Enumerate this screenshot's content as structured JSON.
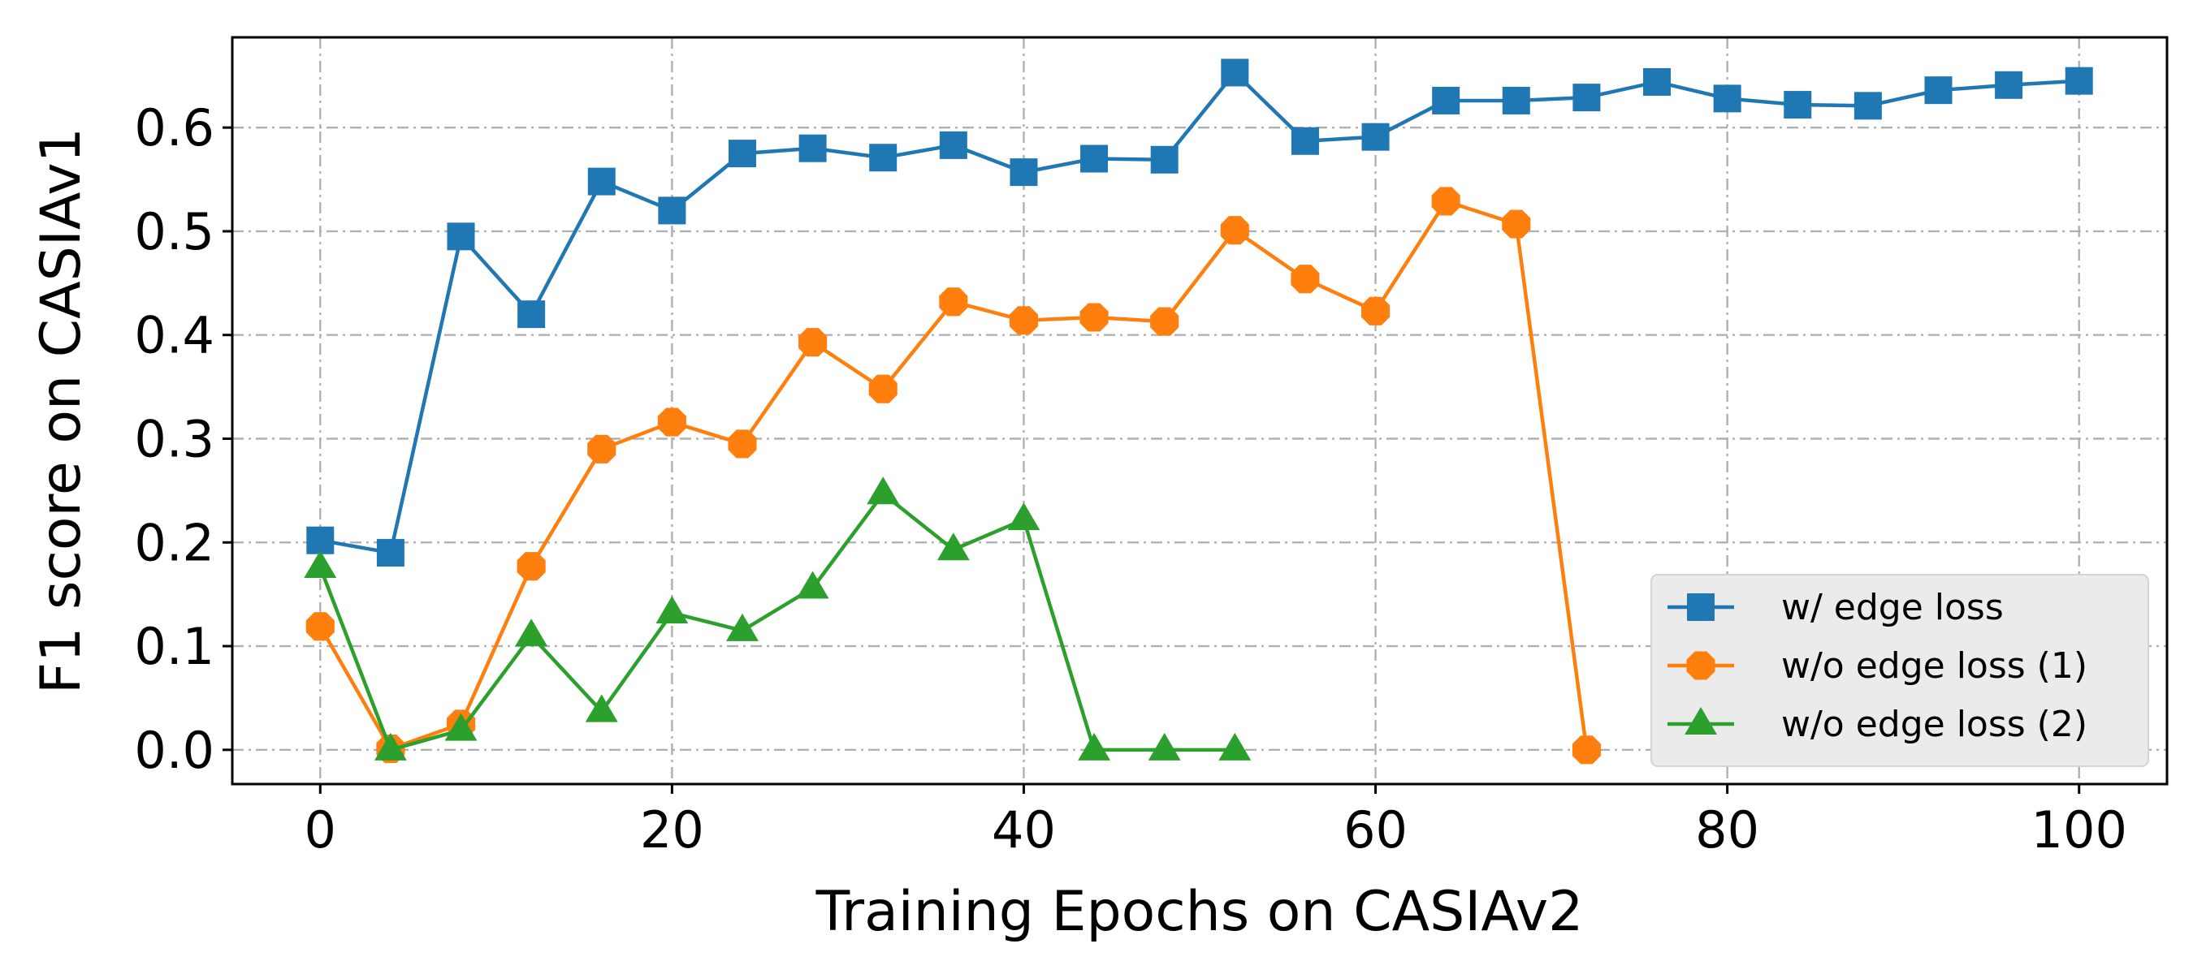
{
  "chart_data": {
    "type": "line",
    "xlabel": "Training Epochs on CASIAv2",
    "ylabel": "F1 score on CASIAv1",
    "xlim": [
      -5,
      105
    ],
    "ylim": [
      -0.033,
      0.687
    ],
    "xticks": [
      0,
      20,
      40,
      60,
      80,
      100
    ],
    "yticks": [
      0.0,
      0.1,
      0.2,
      0.3,
      0.4,
      0.5,
      0.6
    ],
    "xtick_labels": [
      "0",
      "20",
      "40",
      "60",
      "80",
      "100"
    ],
    "ytick_labels": [
      "0.0",
      "0.1",
      "0.2",
      "0.3",
      "0.4",
      "0.5",
      "0.6"
    ],
    "grid": true,
    "legend_position": "bottom-right",
    "series": [
      {
        "name": "w/ edge loss",
        "color": "#1f77b4",
        "marker": "square",
        "x": [
          0,
          4,
          8,
          12,
          16,
          20,
          24,
          28,
          32,
          36,
          40,
          44,
          48,
          52,
          56,
          60,
          64,
          68,
          72,
          76,
          80,
          84,
          88,
          92,
          96,
          100
        ],
        "y": [
          0.202,
          0.19,
          0.495,
          0.42,
          0.548,
          0.52,
          0.575,
          0.58,
          0.571,
          0.583,
          0.557,
          0.57,
          0.569,
          0.653,
          0.587,
          0.591,
          0.626,
          0.626,
          0.629,
          0.644,
          0.628,
          0.622,
          0.621,
          0.636,
          0.641,
          0.645
        ]
      },
      {
        "name": "w/o edge loss (1)",
        "color": "#ff7f0e",
        "marker": "octagon",
        "x": [
          0,
          4,
          8,
          12,
          16,
          20,
          24,
          28,
          32,
          36,
          40,
          44,
          48,
          52,
          56,
          60,
          64,
          68,
          72
        ],
        "y": [
          0.119,
          0.001,
          0.025,
          0.177,
          0.29,
          0.316,
          0.295,
          0.393,
          0.348,
          0.432,
          0.414,
          0.417,
          0.413,
          0.501,
          0.454,
          0.423,
          0.529,
          0.507,
          0.0
        ]
      },
      {
        "name": "w/o edge loss (2)",
        "color": "#2ca02c",
        "marker": "triangle",
        "x": [
          0,
          4,
          8,
          12,
          16,
          20,
          24,
          28,
          32,
          36,
          40,
          44,
          48,
          52
        ],
        "y": [
          0.176,
          0.0,
          0.019,
          0.11,
          0.037,
          0.132,
          0.115,
          0.156,
          0.247,
          0.193,
          0.222,
          0.0,
          0.0,
          0.0
        ]
      }
    ]
  }
}
